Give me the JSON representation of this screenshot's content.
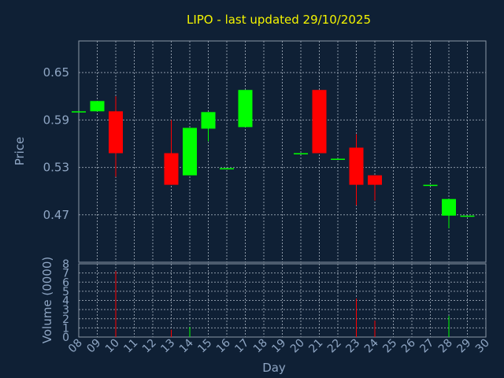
{
  "chart_data": {
    "type": "candlestick",
    "title": "LIPO - last updated 29/10/2025",
    "xlabel": "Day",
    "price_panel": {
      "ylabel": "Price",
      "yticks": [
        0.47,
        0.53,
        0.59,
        0.65
      ],
      "ytick_labels": [
        "0.47",
        "0.53",
        "0.59",
        "0.65"
      ],
      "ylim": [
        0.41,
        0.69
      ],
      "grid": true
    },
    "volume_panel": {
      "ylabel": "Volume (0000)",
      "yticks": [
        0,
        1,
        2,
        3,
        4,
        5,
        6,
        7,
        8
      ],
      "ytick_labels": [
        "0",
        "1",
        "2",
        "3",
        "4",
        "5",
        "6",
        "7",
        "8"
      ],
      "ylim": [
        0,
        8
      ],
      "grid": true
    },
    "x_tick_labels": [
      "08",
      "09",
      "10",
      "11",
      "12",
      "13",
      "14",
      "15",
      "16",
      "17",
      "18",
      "19",
      "20",
      "21",
      "22",
      "23",
      "24",
      "25",
      "26",
      "27",
      "28",
      "29",
      "30"
    ],
    "x_range": [
      8,
      30
    ],
    "up_color": "#00ff00",
    "down_color": "#ff0000",
    "candles": [
      {
        "day": 8,
        "open": 0.601,
        "high": 0.601,
        "low": 0.601,
        "close": 0.601,
        "volume": 0
      },
      {
        "day": 9,
        "open": 0.601,
        "high": 0.614,
        "low": 0.601,
        "close": 0.614,
        "volume": 0
      },
      {
        "day": 10,
        "open": 0.601,
        "high": 0.62,
        "low": 0.518,
        "close": 0.548,
        "volume": 7.2
      },
      {
        "day": 13,
        "open": 0.548,
        "high": 0.59,
        "low": 0.508,
        "close": 0.508,
        "volume": 0.8
      },
      {
        "day": 14,
        "open": 0.52,
        "high": 0.58,
        "low": 0.52,
        "close": 0.58,
        "volume": 1.1
      },
      {
        "day": 15,
        "open": 0.579,
        "high": 0.6,
        "low": 0.563,
        "close": 0.6,
        "volume": 0
      },
      {
        "day": 16,
        "open": 0.529,
        "high": 0.529,
        "low": 0.529,
        "close": 0.529,
        "volume": 0
      },
      {
        "day": 17,
        "open": 0.581,
        "high": 0.628,
        "low": 0.581,
        "close": 0.628,
        "volume": 0
      },
      {
        "day": 20,
        "open": 0.548,
        "high": 0.548,
        "low": 0.548,
        "close": 0.548,
        "volume": 0
      },
      {
        "day": 21,
        "open": 0.628,
        "high": 0.628,
        "low": 0.548,
        "close": 0.548,
        "volume": 0
      },
      {
        "day": 22,
        "open": 0.541,
        "high": 0.541,
        "low": 0.541,
        "close": 0.541,
        "volume": 0
      },
      {
        "day": 23,
        "open": 0.555,
        "high": 0.572,
        "low": 0.482,
        "close": 0.508,
        "volume": 4.2
      },
      {
        "day": 24,
        "open": 0.52,
        "high": 0.52,
        "low": 0.488,
        "close": 0.508,
        "volume": 1.8
      },
      {
        "day": 27,
        "open": 0.508,
        "high": 0.508,
        "low": 0.508,
        "close": 0.508,
        "volume": 0
      },
      {
        "day": 28,
        "open": 0.469,
        "high": 0.49,
        "low": 0.453,
        "close": 0.49,
        "volume": 2.3
      },
      {
        "day": 29,
        "open": 0.469,
        "high": 0.469,
        "low": 0.469,
        "close": 0.469,
        "volume": 0
      }
    ]
  }
}
